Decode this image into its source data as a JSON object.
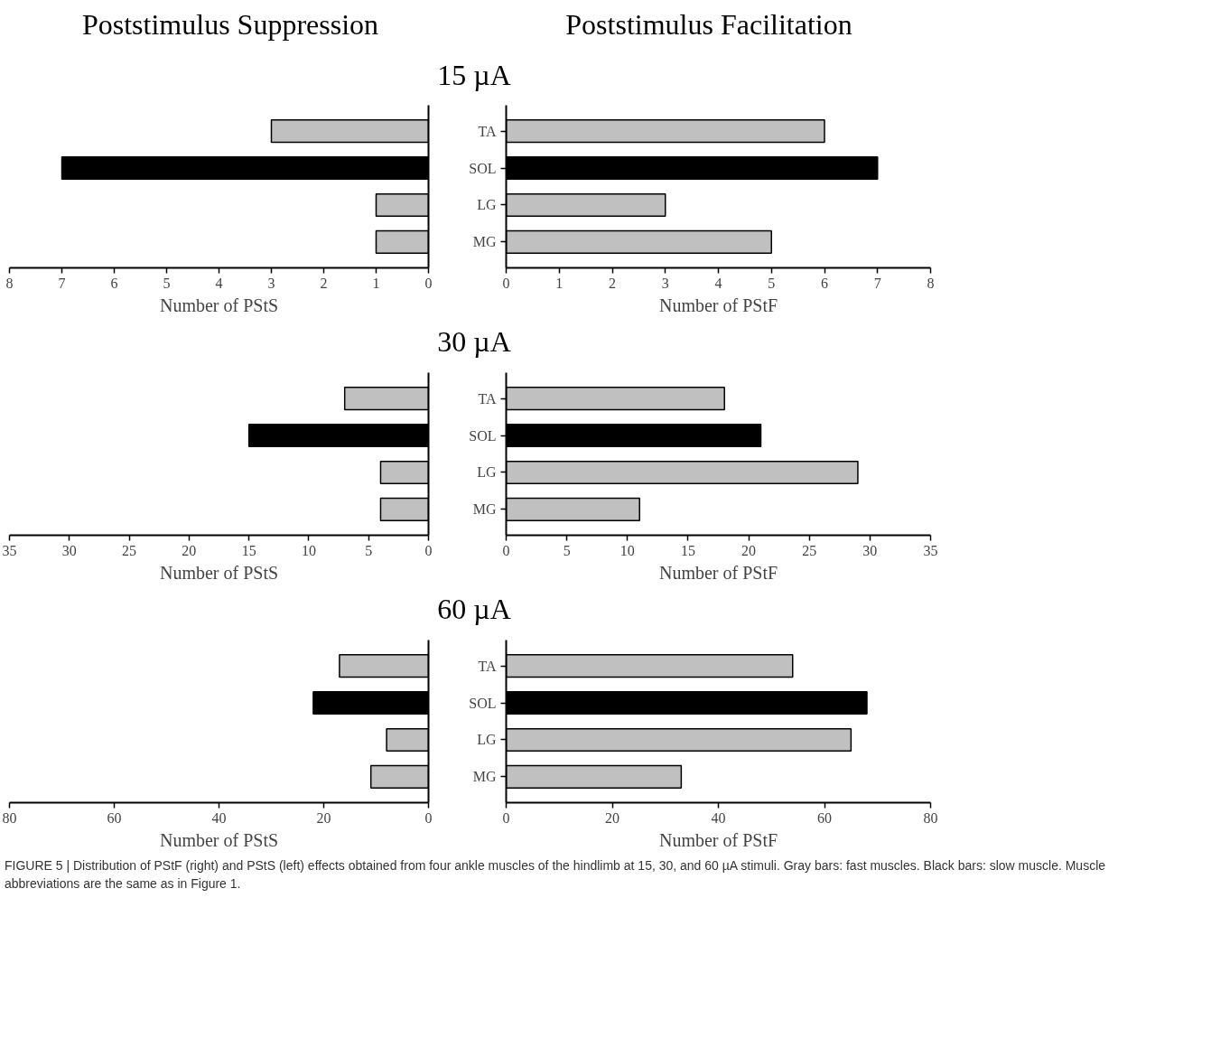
{
  "chart_data": [
    {
      "type": "bar",
      "orientation": "horizontal",
      "title": "Poststimulus Suppression",
      "subtitle": "15 µA",
      "xlabel": "Number of PStS",
      "categories": [
        null,
        null,
        null,
        null
      ],
      "values": [
        3,
        7,
        1,
        1
      ],
      "colors": [
        "#c0c0c0",
        "#000000",
        "#c0c0c0",
        "#c0c0c0"
      ],
      "xlim": [
        8,
        0
      ],
      "xticks": [
        8,
        7,
        6,
        5,
        4,
        3,
        2,
        1,
        0
      ],
      "tick_labels": "x",
      "grid": false
    },
    {
      "type": "bar",
      "orientation": "horizontal",
      "title": "Poststimulus Facilitation",
      "xlabel": "Number of PStF",
      "categories": [
        "TA",
        "SOL",
        "LG",
        "MG"
      ],
      "values": [
        6,
        7,
        3,
        5
      ],
      "colors": [
        "#c0c0c0",
        "#000000",
        "#c0c0c0",
        "#c0c0c0"
      ],
      "xlim": [
        0,
        8
      ],
      "xticks": [
        0,
        1,
        2,
        3,
        4,
        5,
        6,
        7,
        8
      ],
      "grid": false
    },
    {
      "type": "bar",
      "orientation": "horizontal",
      "subtitle": "30 µA",
      "xlabel": "Number of PStS",
      "categories": [
        null,
        null,
        null,
        null
      ],
      "values": [
        7,
        15,
        4,
        4
      ],
      "colors": [
        "#c0c0c0",
        "#000000",
        "#c0c0c0",
        "#c0c0c0"
      ],
      "xlim": [
        35,
        0
      ],
      "xticks": [
        35,
        30,
        25,
        20,
        15,
        10,
        5,
        0
      ],
      "tick_labels": "x",
      "grid": false
    },
    {
      "type": "bar",
      "orientation": "horizontal",
      "xlabel": "Number of PStF",
      "categories": [
        "TA",
        "SOL",
        "LG",
        "MG"
      ],
      "values": [
        18,
        21,
        29,
        11
      ],
      "colors": [
        "#c0c0c0",
        "#000000",
        "#c0c0c0",
        "#c0c0c0"
      ],
      "xlim": [
        0,
        35
      ],
      "xticks": [
        0,
        5,
        10,
        15,
        20,
        25,
        30,
        35
      ],
      "grid": false
    },
    {
      "type": "bar",
      "orientation": "horizontal",
      "subtitle": "60 µA",
      "xlabel": "Number of PStS",
      "categories": [
        null,
        null,
        null,
        null
      ],
      "values": [
        17,
        22,
        8,
        11
      ],
      "colors": [
        "#c0c0c0",
        "#000000",
        "#c0c0c0",
        "#c0c0c0"
      ],
      "xlim": [
        80,
        0
      ],
      "xticks": [
        80,
        60,
        40,
        20,
        0
      ],
      "tick_labels": "x",
      "grid": false
    },
    {
      "type": "bar",
      "orientation": "horizontal",
      "xlabel": "Number of PStF",
      "categories": [
        "TA",
        "SOL",
        "LG",
        "MG"
      ],
      "values": [
        54,
        68,
        65,
        33
      ],
      "colors": [
        "#c0c0c0",
        "#000000",
        "#c0c0c0",
        "#c0c0c0"
      ],
      "xlim": [
        0,
        80
      ],
      "xticks": [
        0,
        20,
        40,
        60,
        80
      ],
      "grid": false,
      "annotations": [
        "FIGURE 5 | Distribution of PStF (right) and PStS (left) effects obtained from four ankle muscles of the hindlimb at 15, 30, and 60 µA stimuli. Gray bars: fast muscles. Black bars: slow muscle. Muscle abbreviations are the same as in Figure 1."
      ]
    }
  ]
}
